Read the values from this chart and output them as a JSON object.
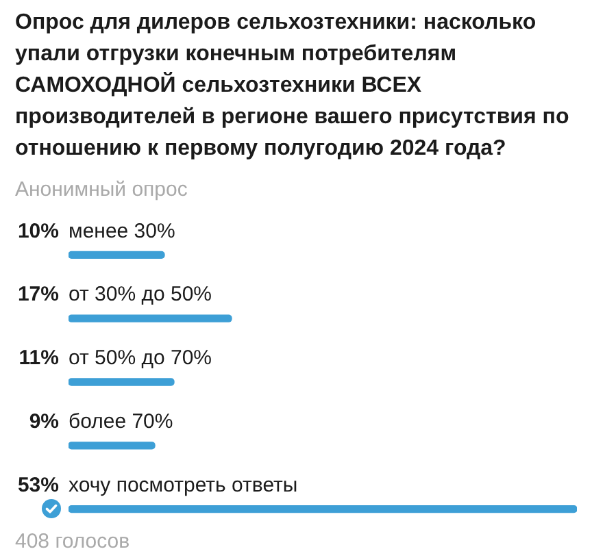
{
  "chart_data": {
    "type": "bar",
    "orientation": "horizontal",
    "title": "Опрос для дилеров сельхозтехники: насколько упали отгрузки конечным потребителям САМОХОДНОЙ сельхозтехники ВСЕХ производителей в регионе вашего присутствия по отношению к первому полугодию 2024 года?",
    "subtitle": "Анонимный опрос",
    "categories": [
      "менее 30%",
      "от 30% до 50%",
      "от 50% до 70%",
      "более 70%",
      "хочу посмотреть ответы"
    ],
    "values": [
      10,
      17,
      11,
      9,
      53
    ],
    "value_labels": [
      "10%",
      "17%",
      "11%",
      "9%",
      "53%"
    ],
    "color": "#3d9fd6",
    "annotations": [
      "408 голосов"
    ]
  }
}
